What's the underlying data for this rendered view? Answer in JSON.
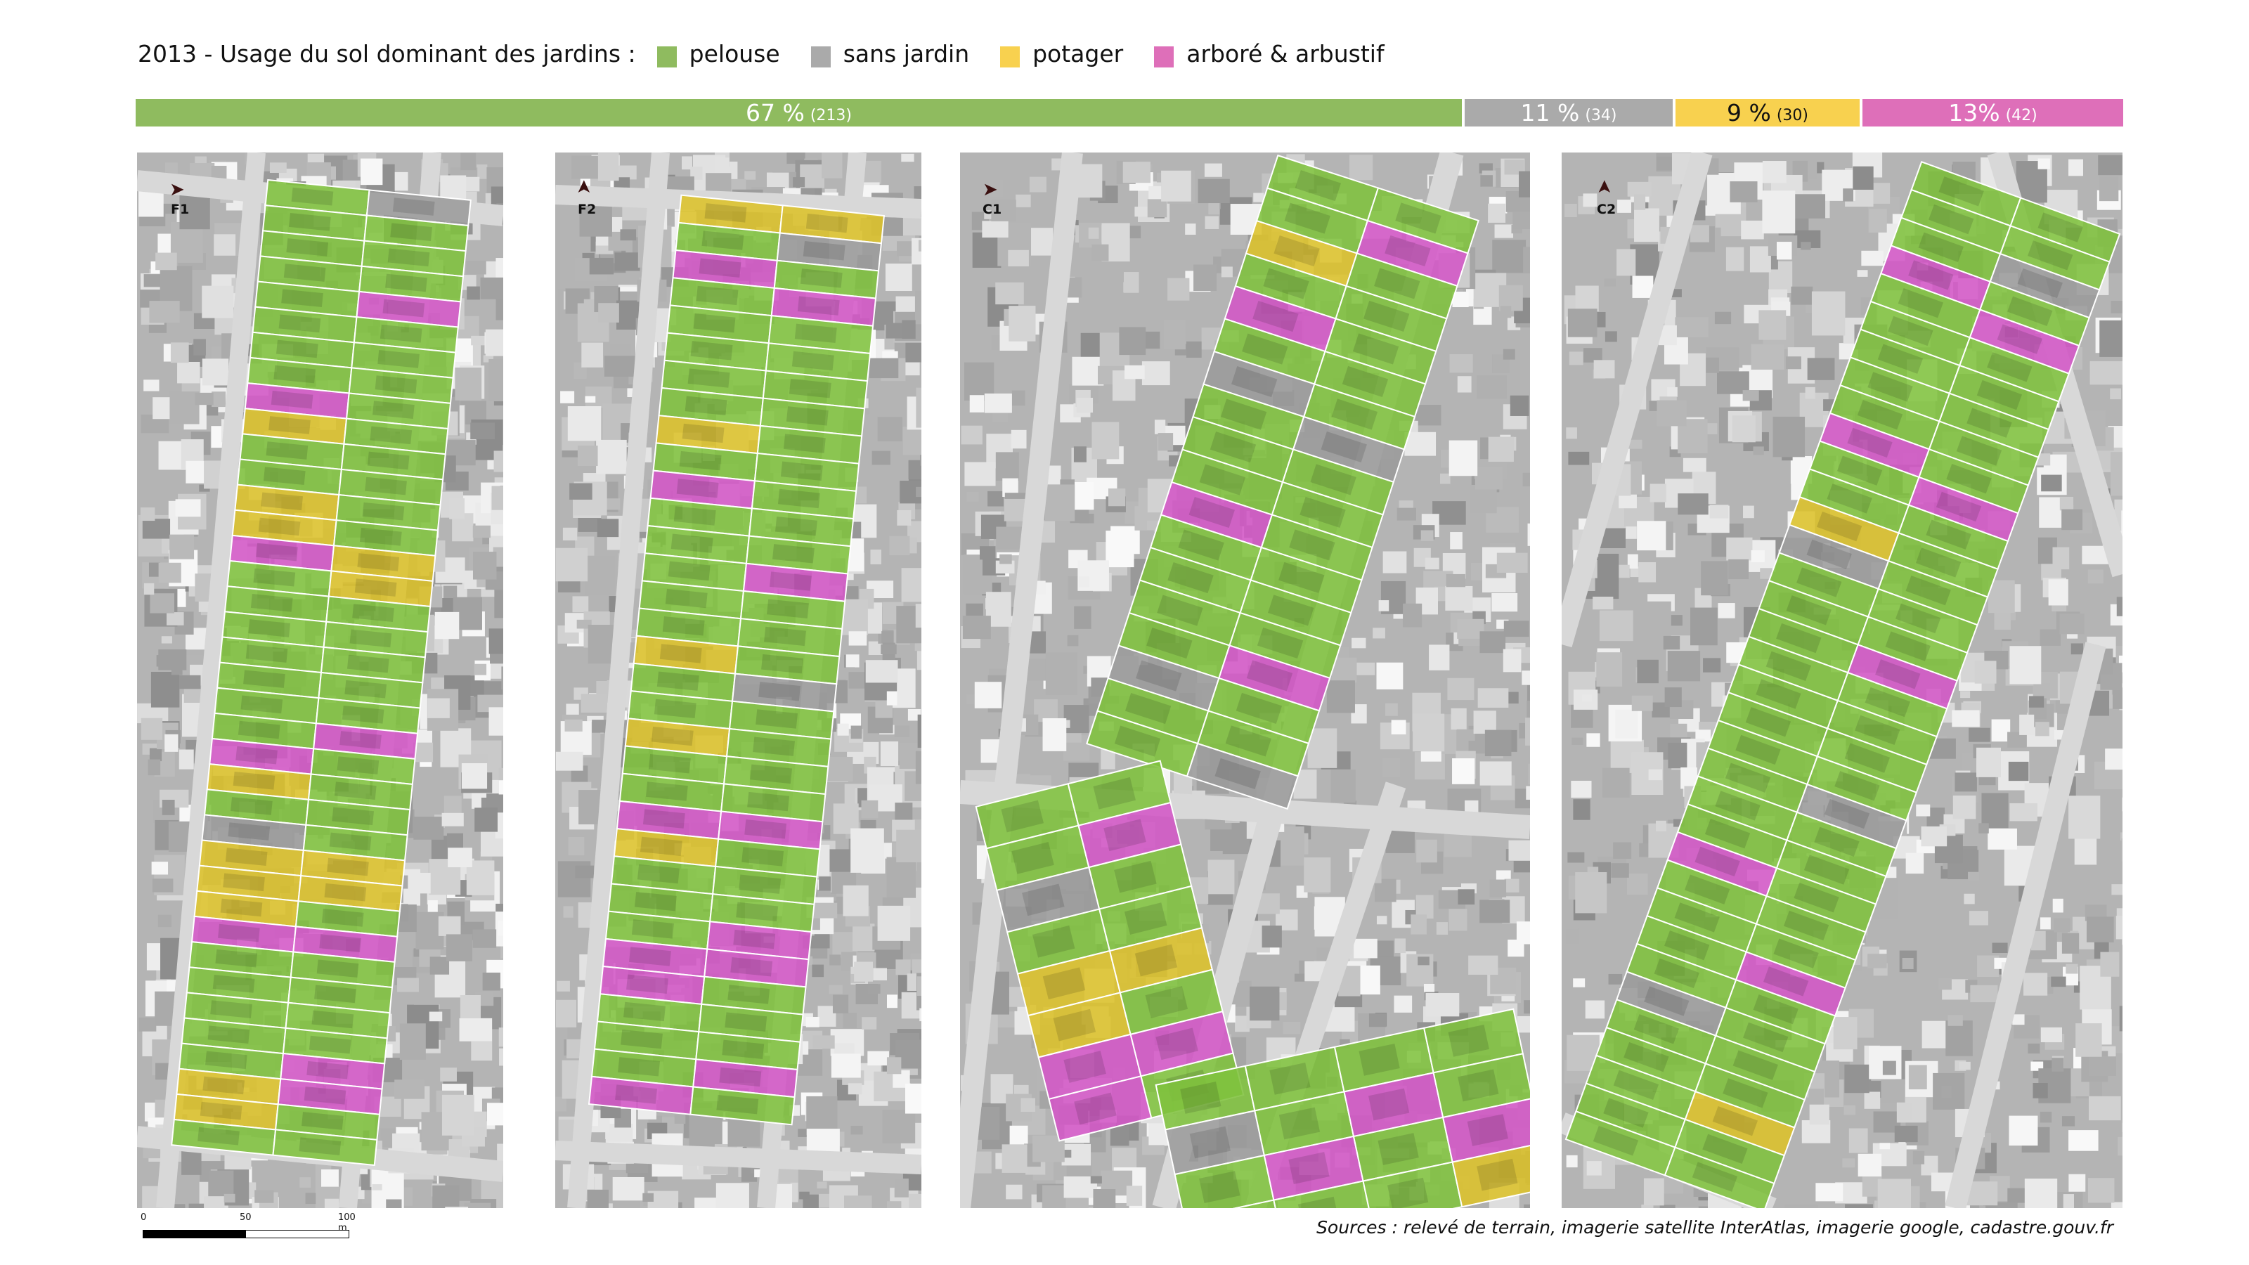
{
  "title": "2013 - Usage du sol dominant des jardins :",
  "legend": [
    {
      "label": "pelouse",
      "color": "#8fbb5f"
    },
    {
      "label": "sans jardin",
      "color": "#aaaaaa"
    },
    {
      "label": "potager",
      "color": "#f8d14f"
    },
    {
      "label": "arboré & arbustif",
      "color": "#de6fb9"
    }
  ],
  "summary_bar": [
    {
      "category": "pelouse",
      "percent_label": "67 %",
      "count_label": "(213)",
      "percent": 67,
      "count": 213,
      "color": "#8fbb5f"
    },
    {
      "category": "sans jardin",
      "percent_label": "11 %",
      "count_label": "(34)",
      "percent": 11,
      "count": 34,
      "color": "#aaaaaa"
    },
    {
      "category": "potager",
      "percent_label": "9 %",
      "count_label": "(30)",
      "percent": 9,
      "count": 30,
      "color": "#f8d14f"
    },
    {
      "category": "arboré & arbustif",
      "percent_label": "13%",
      "count_label": "(42)",
      "percent": 13,
      "count": 42,
      "color": "#de6fb9"
    }
  ],
  "panels": [
    {
      "label": "F1",
      "north": "north-arrow-east"
    },
    {
      "label": "F2",
      "north": "north-arrow-up"
    },
    {
      "label": "C1",
      "north": "north-arrow-east"
    },
    {
      "label": "C2",
      "north": "north-arrow-up"
    }
  ],
  "scale_bar": {
    "ticks": [
      "0",
      "50",
      "100 m"
    ]
  },
  "sources": "Sources : relevé de terrain, imagerie satellite InterAtlas, imagerie google, cadastre.gouv.fr"
}
